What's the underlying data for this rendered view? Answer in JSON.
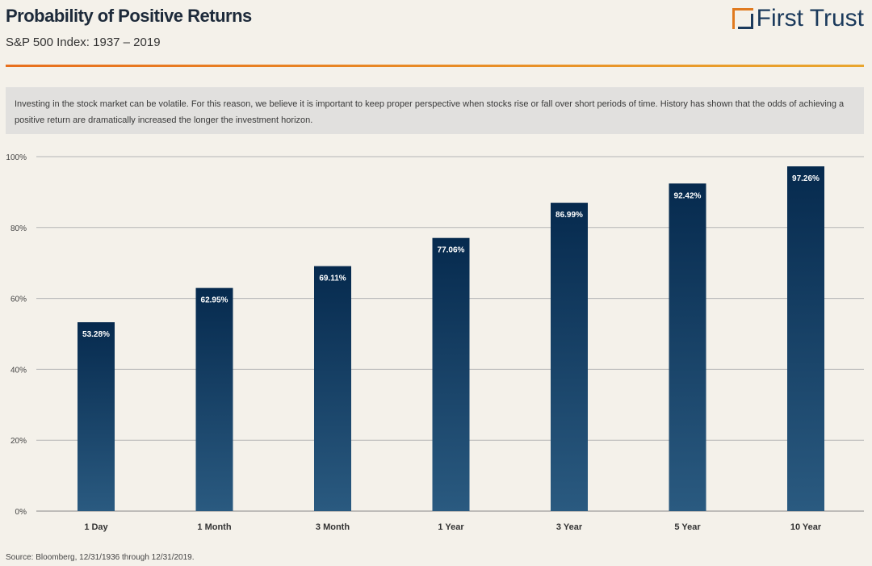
{
  "header": {
    "title": "Probability of Positive Returns",
    "subtitle": "S&P 500 Index: 1937 – 2019",
    "logo_text": "First Trust"
  },
  "intro": "Investing in the stock market can be volatile. For this reason, we believe it is important to keep proper perspective when stocks rise or fall over short periods of time. History has shown that the odds of achieving a positive return are dramatically increased the longer the investment horizon.",
  "footer": {
    "source": "Source: Bloomberg, 12/31/1936 through 12/31/2019."
  },
  "colors": {
    "bar_top": "#062a4e",
    "bar_bottom": "#2a5a80",
    "accent_orange": "#e8701e",
    "logo_navy": "#1b3a5c"
  },
  "chart_data": {
    "type": "bar",
    "categories": [
      "1 Day",
      "1 Month",
      "3 Month",
      "1 Year",
      "3 Year",
      "5 Year",
      "10 Year"
    ],
    "values": [
      53.28,
      62.95,
      69.11,
      77.06,
      86.99,
      92.42,
      97.26
    ],
    "data_labels": [
      "53.28%",
      "62.95%",
      "69.11%",
      "77.06%",
      "86.99%",
      "92.42%",
      "97.26%"
    ],
    "ylim": [
      0,
      100
    ],
    "yticks": [
      0,
      20,
      40,
      60,
      80,
      100
    ],
    "ytick_labels": [
      "0%",
      "20%",
      "40%",
      "60%",
      "80%",
      "100%"
    ],
    "grid": true,
    "legend": "none"
  }
}
